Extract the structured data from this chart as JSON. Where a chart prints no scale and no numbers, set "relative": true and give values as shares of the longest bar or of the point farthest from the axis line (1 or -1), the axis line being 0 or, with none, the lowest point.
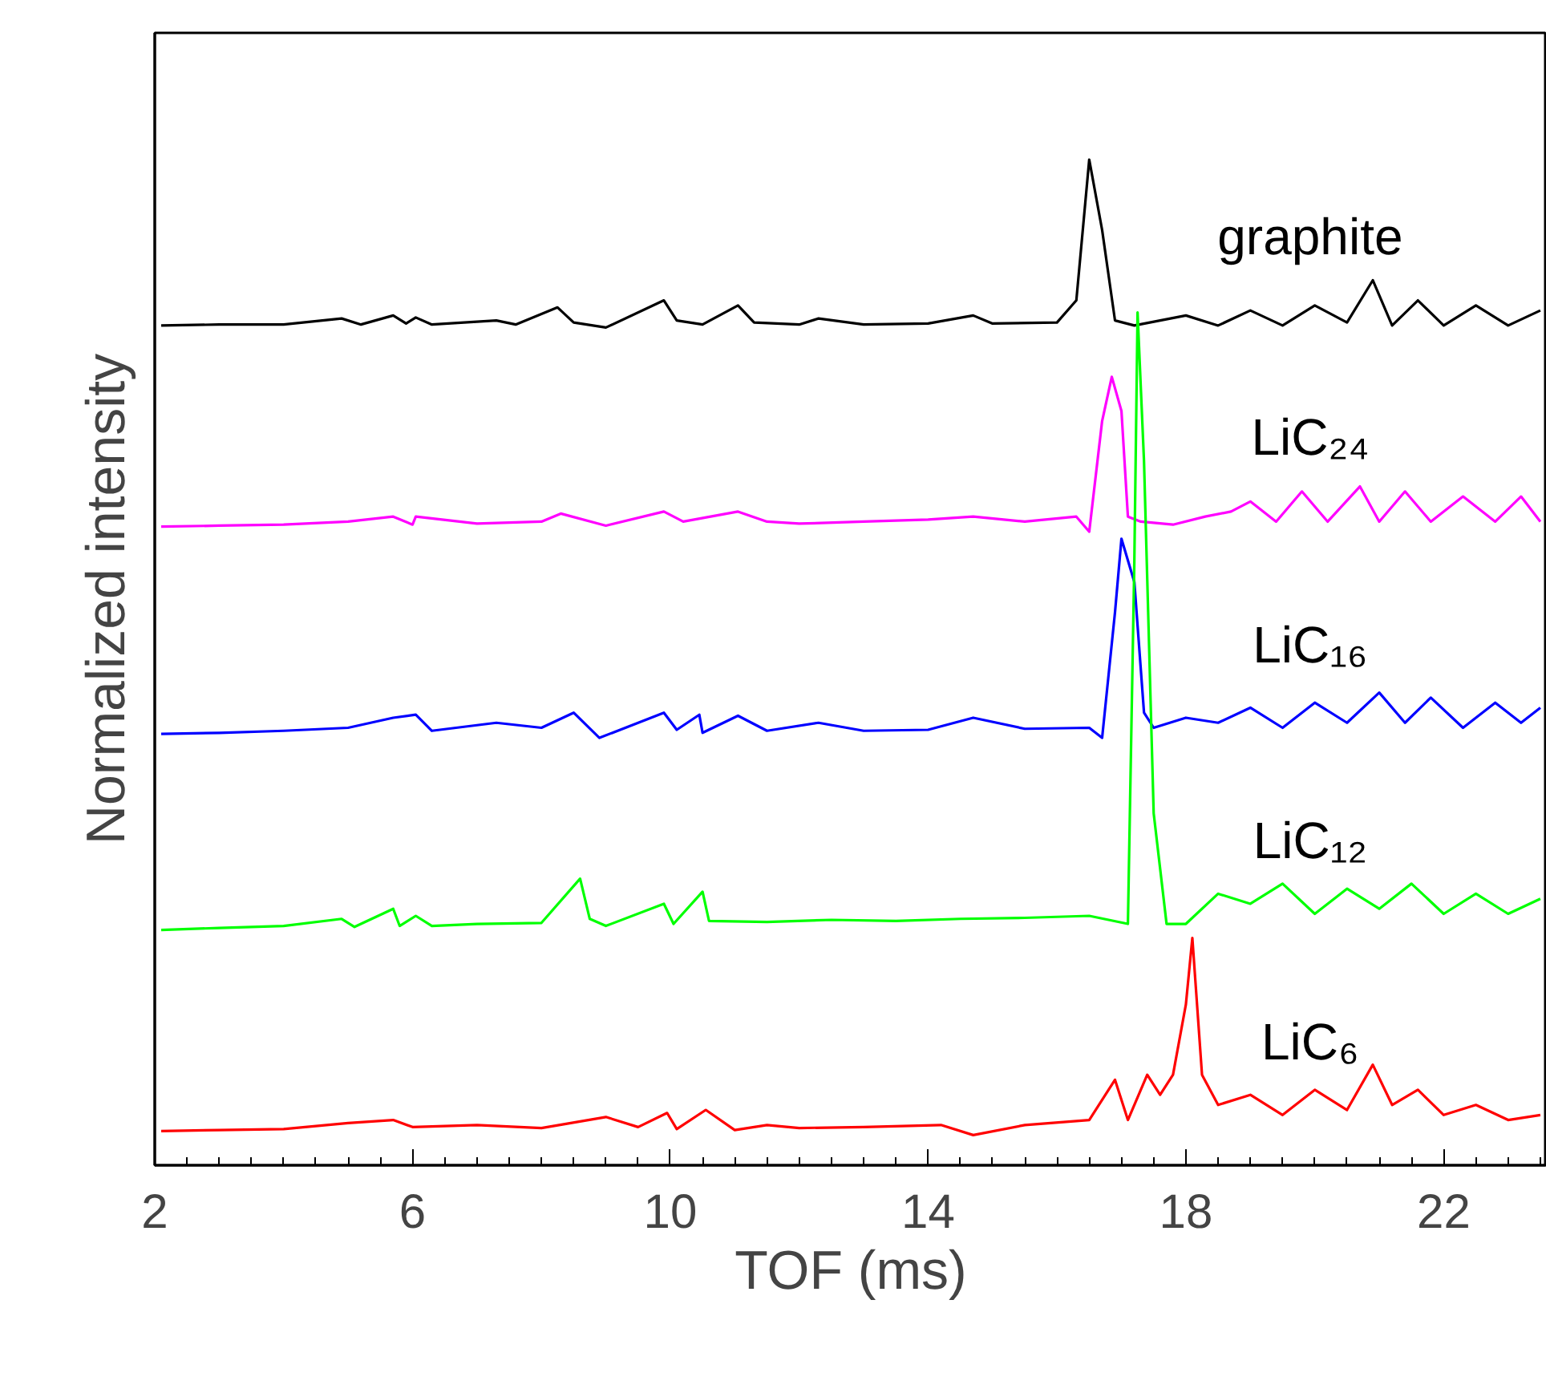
{
  "chart_data": {
    "type": "line",
    "relative": true,
    "xlabel": "TOF (ms)",
    "ylabel": "Normalized intensity",
    "xlim": [
      2,
      23.6
    ],
    "xticks": [
      2,
      6,
      10,
      14,
      18,
      22
    ],
    "tick_labels": "x",
    "grid": false,
    "legend": false,
    "series": [
      {
        "name": "graphite",
        "color": "#000000",
        "x": [
          2.1,
          3,
          4,
          4.9,
          5.2,
          5.7,
          5.9,
          6.05,
          6.3,
          7.3,
          7.6,
          8.25,
          8.5,
          9,
          9.9,
          10.1,
          10.5,
          11.05,
          11.3,
          12,
          12.3,
          13,
          14,
          14.7,
          15,
          16,
          16.3,
          16.5,
          16.7,
          16.9,
          17.2,
          17.6,
          18,
          18.5,
          19,
          19.5,
          20,
          20.5,
          20.9,
          21.2,
          21.6,
          22,
          22.5,
          23,
          23.5
        ],
        "values": [
          0.835,
          0.836,
          0.836,
          0.842,
          0.836,
          0.845,
          0.837,
          0.843,
          0.836,
          0.84,
          0.836,
          0.853,
          0.838,
          0.833,
          0.86,
          0.84,
          0.836,
          0.855,
          0.838,
          0.836,
          0.842,
          0.836,
          0.837,
          0.845,
          0.837,
          0.838,
          0.86,
          1.0,
          0.93,
          0.84,
          0.835,
          0.84,
          0.845,
          0.835,
          0.85,
          0.835,
          0.855,
          0.838,
          0.88,
          0.835,
          0.86,
          0.835,
          0.855,
          0.835,
          0.85
        ]
      },
      {
        "name": "LiC₂₄",
        "color": "#ff00ff",
        "x": [
          2.1,
          3,
          4,
          5,
          5.7,
          6,
          6.05,
          7,
          8,
          8.3,
          9,
          9.9,
          10.2,
          11.05,
          11.5,
          12,
          13,
          14,
          14.7,
          15.5,
          16.3,
          16.5,
          16.7,
          16.85,
          17.0,
          17.1,
          17.3,
          17.8,
          18.3,
          18.7,
          19,
          19.4,
          19.8,
          20.2,
          20.7,
          21,
          21.4,
          21.8,
          22.3,
          22.8,
          23.2,
          23.5
        ],
        "values": [
          0.635,
          0.636,
          0.637,
          0.64,
          0.645,
          0.637,
          0.645,
          0.638,
          0.64,
          0.648,
          0.636,
          0.65,
          0.64,
          0.65,
          0.64,
          0.638,
          0.64,
          0.642,
          0.645,
          0.64,
          0.645,
          0.63,
          0.74,
          0.784,
          0.75,
          0.645,
          0.64,
          0.637,
          0.645,
          0.65,
          0.66,
          0.64,
          0.67,
          0.64,
          0.675,
          0.64,
          0.67,
          0.64,
          0.665,
          0.64,
          0.665,
          0.64
        ]
      },
      {
        "name": "LiC₁₆",
        "color": "#0000ff",
        "x": [
          2.1,
          3,
          4,
          5,
          5.7,
          6.05,
          6.3,
          7.3,
          8,
          8.5,
          8.9,
          9.9,
          10.1,
          10.45,
          10.5,
          11.05,
          11.5,
          12.3,
          13,
          14,
          14.7,
          15.5,
          16.5,
          16.7,
          16.9,
          17.0,
          17.2,
          17.35,
          17.5,
          18,
          18.5,
          19,
          19.5,
          20,
          20.5,
          21,
          21.4,
          21.8,
          22.3,
          22.8,
          23.2,
          23.5
        ],
        "values": [
          0.429,
          0.43,
          0.432,
          0.435,
          0.445,
          0.448,
          0.432,
          0.44,
          0.435,
          0.45,
          0.425,
          0.45,
          0.433,
          0.448,
          0.43,
          0.447,
          0.432,
          0.44,
          0.432,
          0.433,
          0.445,
          0.434,
          0.435,
          0.425,
          0.55,
          0.623,
          0.58,
          0.45,
          0.435,
          0.445,
          0.44,
          0.455,
          0.435,
          0.46,
          0.44,
          0.47,
          0.44,
          0.465,
          0.435,
          0.46,
          0.44,
          0.455
        ]
      },
      {
        "name": "LiC₁₂",
        "color": "#00ff00",
        "x": [
          2.1,
          3,
          4,
          4.9,
          5.1,
          5.7,
          5.8,
          6.05,
          6.3,
          7,
          8,
          8.6,
          8.75,
          9,
          9.9,
          10.05,
          10.5,
          10.6,
          11.5,
          12.5,
          13.5,
          14.5,
          15.5,
          16.5,
          17.1,
          17.2,
          17.25,
          17.35,
          17.5,
          17.7,
          18,
          18.5,
          19,
          19.5,
          20,
          20.5,
          21,
          21.5,
          22,
          22.5,
          23,
          23.5
        ],
        "values": [
          0.234,
          0.236,
          0.238,
          0.245,
          0.237,
          0.255,
          0.238,
          0.248,
          0.238,
          0.24,
          0.241,
          0.285,
          0.245,
          0.238,
          0.26,
          0.24,
          0.272,
          0.243,
          0.242,
          0.244,
          0.243,
          0.245,
          0.246,
          0.248,
          0.24,
          0.6,
          0.848,
          0.7,
          0.35,
          0.24,
          0.24,
          0.27,
          0.26,
          0.28,
          0.25,
          0.275,
          0.255,
          0.28,
          0.25,
          0.27,
          0.25,
          0.265
        ]
      },
      {
        "name": "LiC₆",
        "color": "#ff0000",
        "x": [
          2.1,
          3,
          4,
          5,
          5.7,
          6,
          7,
          8,
          9,
          9.5,
          9.95,
          10.1,
          10.55,
          11,
          11.5,
          12,
          13,
          14.2,
          14.7,
          15.5,
          16.5,
          16.9,
          17.1,
          17.4,
          17.6,
          17.8,
          18.0,
          18.1,
          18.25,
          18.5,
          19,
          19.5,
          20,
          20.5,
          20.9,
          21.2,
          21.6,
          22,
          22.5,
          23,
          23.5
        ],
        "values": [
          0.034,
          0.035,
          0.036,
          0.042,
          0.045,
          0.038,
          0.04,
          0.037,
          0.048,
          0.038,
          0.052,
          0.036,
          0.055,
          0.035,
          0.04,
          0.037,
          0.038,
          0.04,
          0.03,
          0.04,
          0.045,
          0.085,
          0.045,
          0.09,
          0.07,
          0.09,
          0.16,
          0.226,
          0.09,
          0.06,
          0.07,
          0.05,
          0.075,
          0.055,
          0.1,
          0.06,
          0.075,
          0.05,
          0.06,
          0.045,
          0.05
        ]
      }
    ]
  }
}
